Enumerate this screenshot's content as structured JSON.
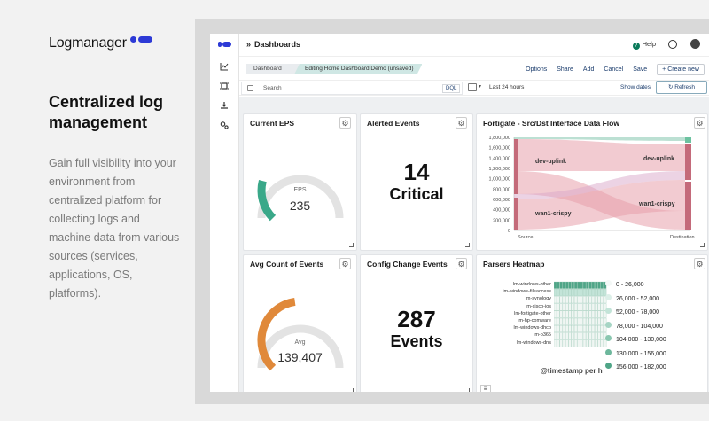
{
  "marketing": {
    "logo_text": "Logmanager",
    "headline": "Centralized log management",
    "description": "Gain full visibility into your environment from centralized platform for collecting logs and machine data from various sources (services, applications, OS, platforms)."
  },
  "header": {
    "title": "Dashboards",
    "help_label": "Help"
  },
  "breadcrumbs": [
    "Dashboard",
    "Editing Home Dashboard Demo (unsaved)"
  ],
  "toolbar": {
    "options": "Options",
    "share": "Share",
    "add": "Add",
    "cancel": "Cancel",
    "save": "Save",
    "create_new": "+ Create new"
  },
  "filter": {
    "search_placeholder": "Search",
    "query_language": "DQL",
    "time_range": "Last 24 hours",
    "show_dates": "Show dates",
    "refresh": "Refresh"
  },
  "panels": {
    "current_eps": {
      "title": "Current EPS",
      "label": "EPS",
      "value": "235",
      "gauge_fraction": 0.22
    },
    "alerted_events": {
      "title": "Alerted Events",
      "value": "14",
      "label": "Critical"
    },
    "flow": {
      "title": "Fortigate - Src/Dst Interface Data Flow"
    },
    "avg_count": {
      "title": "Avg Count of Events",
      "label": "Avg",
      "value": "139,407",
      "gauge_fraction": 0.47
    },
    "config_change": {
      "title": "Config Change Events",
      "value": "287",
      "label": "Events"
    },
    "heatmap": {
      "title": "Parsers Heatmap",
      "x_axis_label": "@timestamp per h"
    }
  },
  "colors": {
    "eps_gauge": "#3aa889",
    "avg_gauge": "#e0893a",
    "brand": "#2d3ad6",
    "sankey_pink": "#e8a0ab",
    "sankey_green": "#9fd3c1",
    "heat_green": "#6cb59a"
  },
  "chart_data": [
    {
      "type": "sankey",
      "y_ticks": [
        "1,800,000",
        "1,600,000",
        "1,400,000",
        "1,200,000",
        "1,000,000",
        "800,000",
        "600,000",
        "400,000",
        "200,000",
        "0"
      ],
      "x_labels": [
        "Source",
        "Destination"
      ],
      "sources": [
        "dev-uplink",
        "wan1-crispy"
      ],
      "destinations": [
        "dev-uplink",
        "wan1-crispy"
      ]
    },
    {
      "type": "heatmap",
      "rows": [
        "lm-windows-other",
        "lm-windows-fileaccess",
        "lm-synology",
        "lm-cisco-ios",
        "lm-fortigate-other",
        "lm-hp-comware",
        "lm-windows-dhcp",
        "lm-o365",
        "lm-windows-dns"
      ],
      "legend": [
        "0 - 26,000",
        "26,000 - 52,000",
        "52,000 - 78,000",
        "78,000 - 104,000",
        "104,000 - 130,000",
        "130,000 - 156,000",
        "156,000 - 182,000"
      ],
      "legend_colors": [
        "#f3f8f6",
        "#dcefe8",
        "#c3e4d8",
        "#a6d5c4",
        "#8ac7b0",
        "#6db79c",
        "#4fa587"
      ]
    }
  ]
}
